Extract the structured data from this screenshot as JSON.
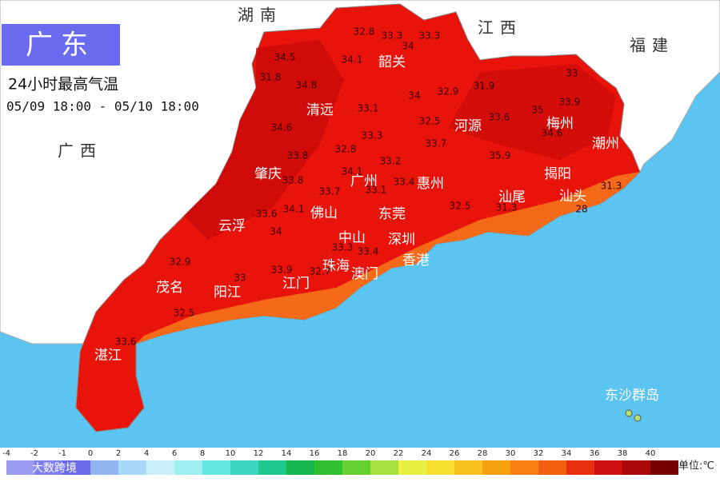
{
  "header": {
    "title": "广东",
    "subtitle": "24小时最高气温",
    "period": "05/09 18:00 - 05/10 18:00"
  },
  "provinces": [
    "湖南",
    "江西",
    "福建",
    "广西"
  ],
  "cities": [
    "韶关",
    "清远",
    "河源",
    "梅州",
    "潮州",
    "揭阳",
    "汕头",
    "汕尾",
    "肇庆",
    "广州",
    "惠州",
    "东莞",
    "佛山",
    "云浮",
    "中山",
    "深圳",
    "香港",
    "珠海",
    "澳门",
    "江门",
    "阳江",
    "茂名",
    "湛江",
    "东沙群岛"
  ],
  "stations": [
    32.8,
    33.3,
    33.3,
    34,
    34.5,
    34.1,
    31.8,
    34.8,
    34,
    32.9,
    31.9,
    33,
    33.9,
    35,
    33.1,
    32.5,
    33.6,
    34.6,
    33.3,
    33.7,
    34.6,
    33.8,
    32.8,
    33.2,
    35.9,
    34.1,
    33.8,
    33.4,
    33.7,
    33.1,
    31.3,
    32.5,
    31.3,
    28,
    33.6,
    34.1,
    34,
    33.3,
    33.4,
    32.9,
    33.9,
    32.7,
    33,
    32.5,
    33.6
  ],
  "legend": {
    "ticks": [
      -4,
      -2,
      -1,
      0,
      2,
      4,
      6,
      8,
      10,
      12,
      14,
      16,
      18,
      20,
      22,
      24,
      26,
      28,
      30,
      32,
      34,
      36,
      38,
      40
    ],
    "colors": [
      "#9b9bf0",
      "#7f7ff5",
      "#6a6ae8",
      "#8fb4f0",
      "#a8d8f8",
      "#c8f0fa",
      "#9ef0f0",
      "#66e6e0",
      "#3cd6c0",
      "#20c890",
      "#18b850",
      "#30c030",
      "#66d030",
      "#a8e040",
      "#e8f040",
      "#f8e030",
      "#f8c020",
      "#f8a010",
      "#f88010",
      "#f06010",
      "#e83010",
      "#d01010",
      "#a80808",
      "#780000"
    ],
    "brand": "大数跨境",
    "unit": "单位:℃"
  }
}
